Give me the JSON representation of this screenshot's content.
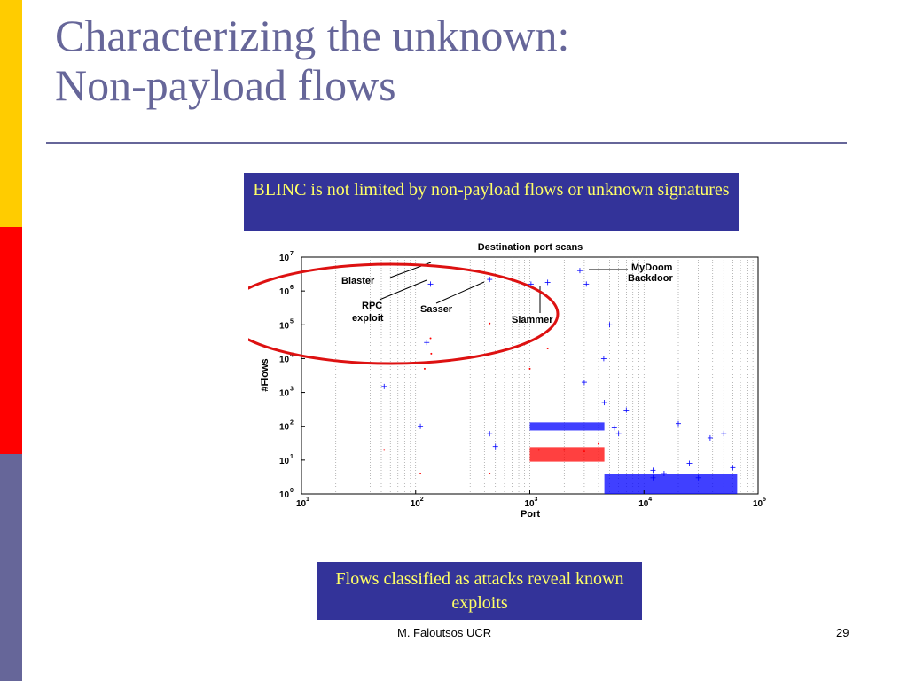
{
  "slide": {
    "title_line1": "Characterizing the unknown:",
    "title_line2": "Non-payload flows",
    "callout_top": "BLINC is not limited by non-payload flows or unknown signatures",
    "callout_bottom": "Flows classified as attacks reveal known exploits",
    "footer_author": "M. Faloutsos UCR",
    "page_number": "29",
    "colors": {
      "title": "#666699",
      "callout_bg": "#333399",
      "callout_text": "#ffff66",
      "bar_yellow": "#ffcc00",
      "bar_red": "#ff0000",
      "bar_blue": "#666699",
      "ellipse": "#dd1111"
    }
  },
  "chart_data": {
    "type": "scatter",
    "title": "Destination port scans",
    "xlabel": "Port",
    "ylabel": "#Flows",
    "x_scale": "log",
    "y_scale": "log",
    "xlim": [
      10,
      100000
    ],
    "ylim": [
      1,
      10000000
    ],
    "grid": "vertical dotted",
    "x_ticks": [
      {
        "base": "10",
        "exp": "1"
      },
      {
        "base": "10",
        "exp": "2"
      },
      {
        "base": "10",
        "exp": "3"
      },
      {
        "base": "10",
        "exp": "4"
      },
      {
        "base": "10",
        "exp": "5"
      }
    ],
    "y_ticks": [
      {
        "base": "10",
        "exp": "0"
      },
      {
        "base": "10",
        "exp": "1"
      },
      {
        "base": "10",
        "exp": "2"
      },
      {
        "base": "10",
        "exp": "3"
      },
      {
        "base": "10",
        "exp": "4"
      },
      {
        "base": "10",
        "exp": "5"
      },
      {
        "base": "10",
        "exp": "6"
      },
      {
        "base": "10",
        "exp": "7"
      }
    ],
    "series": [
      {
        "color": "#0000ff",
        "marker": "plus",
        "points": [
          [
            135,
            1600000
          ],
          [
            445,
            2200000
          ],
          [
            1025,
            1600000
          ],
          [
            1434,
            1800000
          ],
          [
            3127,
            1600000
          ],
          [
            2745,
            4000000
          ],
          [
            125,
            30000
          ],
          [
            5000,
            100000
          ],
          [
            4444,
            10000
          ],
          [
            53,
            1500
          ],
          [
            110,
            100
          ],
          [
            445,
            60
          ],
          [
            500,
            25
          ],
          [
            3000,
            2000
          ],
          [
            4500,
            500
          ],
          [
            7000,
            300
          ],
          [
            20000,
            120
          ],
          [
            38000,
            45
          ],
          [
            50000,
            60
          ],
          [
            30000,
            3
          ],
          [
            12000,
            5
          ],
          [
            25000,
            8
          ],
          [
            60000,
            6
          ],
          [
            12000,
            3
          ],
          [
            5500,
            90
          ],
          [
            6000,
            60
          ],
          [
            15000,
            4
          ]
        ]
      },
      {
        "color": "#ff0000",
        "marker": "dot",
        "points": [
          [
            135,
            40000
          ],
          [
            445,
            110000
          ],
          [
            1434,
            20000
          ],
          [
            137,
            14000
          ],
          [
            120,
            5000
          ],
          [
            1000,
            5000
          ],
          [
            53,
            20
          ],
          [
            110,
            4
          ],
          [
            445,
            4
          ],
          [
            3000,
            18
          ],
          [
            2000,
            20
          ],
          [
            1200,
            20
          ],
          [
            4000,
            30
          ]
        ]
      }
    ],
    "dense_regions": [
      {
        "color": "#0000ff",
        "x": [
          1000,
          4500
        ],
        "y": [
          75,
          130
        ],
        "label": ""
      },
      {
        "color": "#ff0000",
        "x": [
          1000,
          4500
        ],
        "y": [
          9,
          24
        ],
        "label": ""
      },
      {
        "color": "#0000ff",
        "x": [
          4500,
          65535
        ],
        "y": [
          1,
          4
        ],
        "label": ""
      }
    ],
    "annotations": [
      {
        "text": "Blaster",
        "line2": "",
        "port": 135,
        "flows": 1600000
      },
      {
        "text": "RPC",
        "line2": "exploit",
        "port": 135,
        "flows": 1600000
      },
      {
        "text": "Sasser",
        "line2": "",
        "port": 445,
        "flows": 2200000
      },
      {
        "text": "Slammer",
        "line2": "",
        "port": 1434,
        "flows": 1800000
      },
      {
        "text": "MyDoom",
        "line2": "Backdoor",
        "port": 3127,
        "flows": 4000000
      }
    ]
  }
}
